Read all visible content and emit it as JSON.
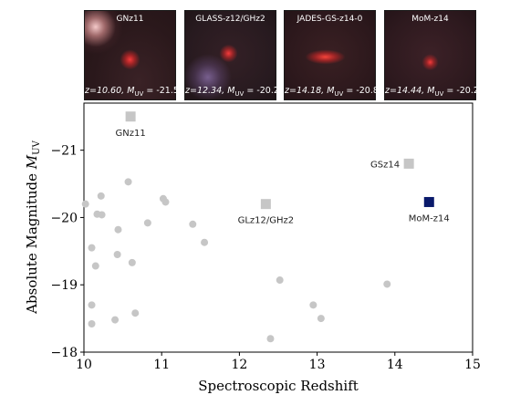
{
  "thumbnails": [
    {
      "title": "GNz11",
      "z": "z=10.60,",
      "muv": "= -21.5"
    },
    {
      "title": "GLASS-z12/GHz2",
      "z": "z=12.34,",
      "muv": "= -20.2"
    },
    {
      "title": "JADES-GS-z14-0",
      "z": "z=14.18,",
      "muv": "= -20.8"
    },
    {
      "title": "MoM-z14",
      "z": "z=14.44,",
      "muv": "= -20.2"
    }
  ],
  "thumbnail_caption_symbol": "M",
  "thumbnail_caption_subscript": "UV",
  "chart_data": {
    "type": "scatter",
    "xlabel": "Spectroscopic Redshift",
    "ylabel": "Absolute Magnitude",
    "ylabel_symbol": "M",
    "ylabel_subscript": "UV",
    "xlim": [
      10,
      15
    ],
    "ylim": [
      -18,
      -21.7
    ],
    "y_inverted": true,
    "xticks": [
      10,
      11,
      12,
      13,
      14,
      15
    ],
    "yticks": [
      -18,
      -19,
      -20,
      -21
    ],
    "ytick_labels": [
      "−18",
      "−19",
      "−20",
      "−21"
    ],
    "grid": false,
    "series": [
      {
        "marker": "circle",
        "color": "#c6c6c6",
        "points": [
          {
            "x": 10.02,
            "y": -20.2
          },
          {
            "x": 10.1,
            "y": -19.55
          },
          {
            "x": 10.1,
            "y": -18.7
          },
          {
            "x": 10.1,
            "y": -18.42
          },
          {
            "x": 10.15,
            "y": -19.28
          },
          {
            "x": 10.17,
            "y": -20.05
          },
          {
            "x": 10.22,
            "y": -20.32
          },
          {
            "x": 10.23,
            "y": -20.04
          },
          {
            "x": 10.4,
            "y": -18.48
          },
          {
            "x": 10.43,
            "y": -19.45
          },
          {
            "x": 10.44,
            "y": -19.82
          },
          {
            "x": 10.57,
            "y": -20.53
          },
          {
            "x": 10.62,
            "y": -19.33
          },
          {
            "x": 10.66,
            "y": -18.58
          },
          {
            "x": 10.82,
            "y": -19.92
          },
          {
            "x": 11.02,
            "y": -20.28
          },
          {
            "x": 11.05,
            "y": -20.23
          },
          {
            "x": 11.4,
            "y": -19.9
          },
          {
            "x": 11.55,
            "y": -19.63
          },
          {
            "x": 12.4,
            "y": -18.2
          },
          {
            "x": 12.52,
            "y": -19.07
          },
          {
            "x": 12.95,
            "y": -18.7
          },
          {
            "x": 13.05,
            "y": -18.5
          },
          {
            "x": 13.9,
            "y": -19.01
          }
        ]
      },
      {
        "marker": "square",
        "color": "#c6c6c6",
        "points": [
          {
            "x": 10.6,
            "y": -21.5,
            "label": "GNz11"
          },
          {
            "x": 12.34,
            "y": -20.2,
            "label": "GLz12/GHz2"
          },
          {
            "x": 14.18,
            "y": -20.8,
            "label": "GSz14"
          }
        ]
      },
      {
        "marker": "square",
        "color": "#0a1a6b",
        "points": [
          {
            "x": 14.44,
            "y": -20.23,
            "label": "MoM-z14"
          }
        ]
      }
    ]
  }
}
